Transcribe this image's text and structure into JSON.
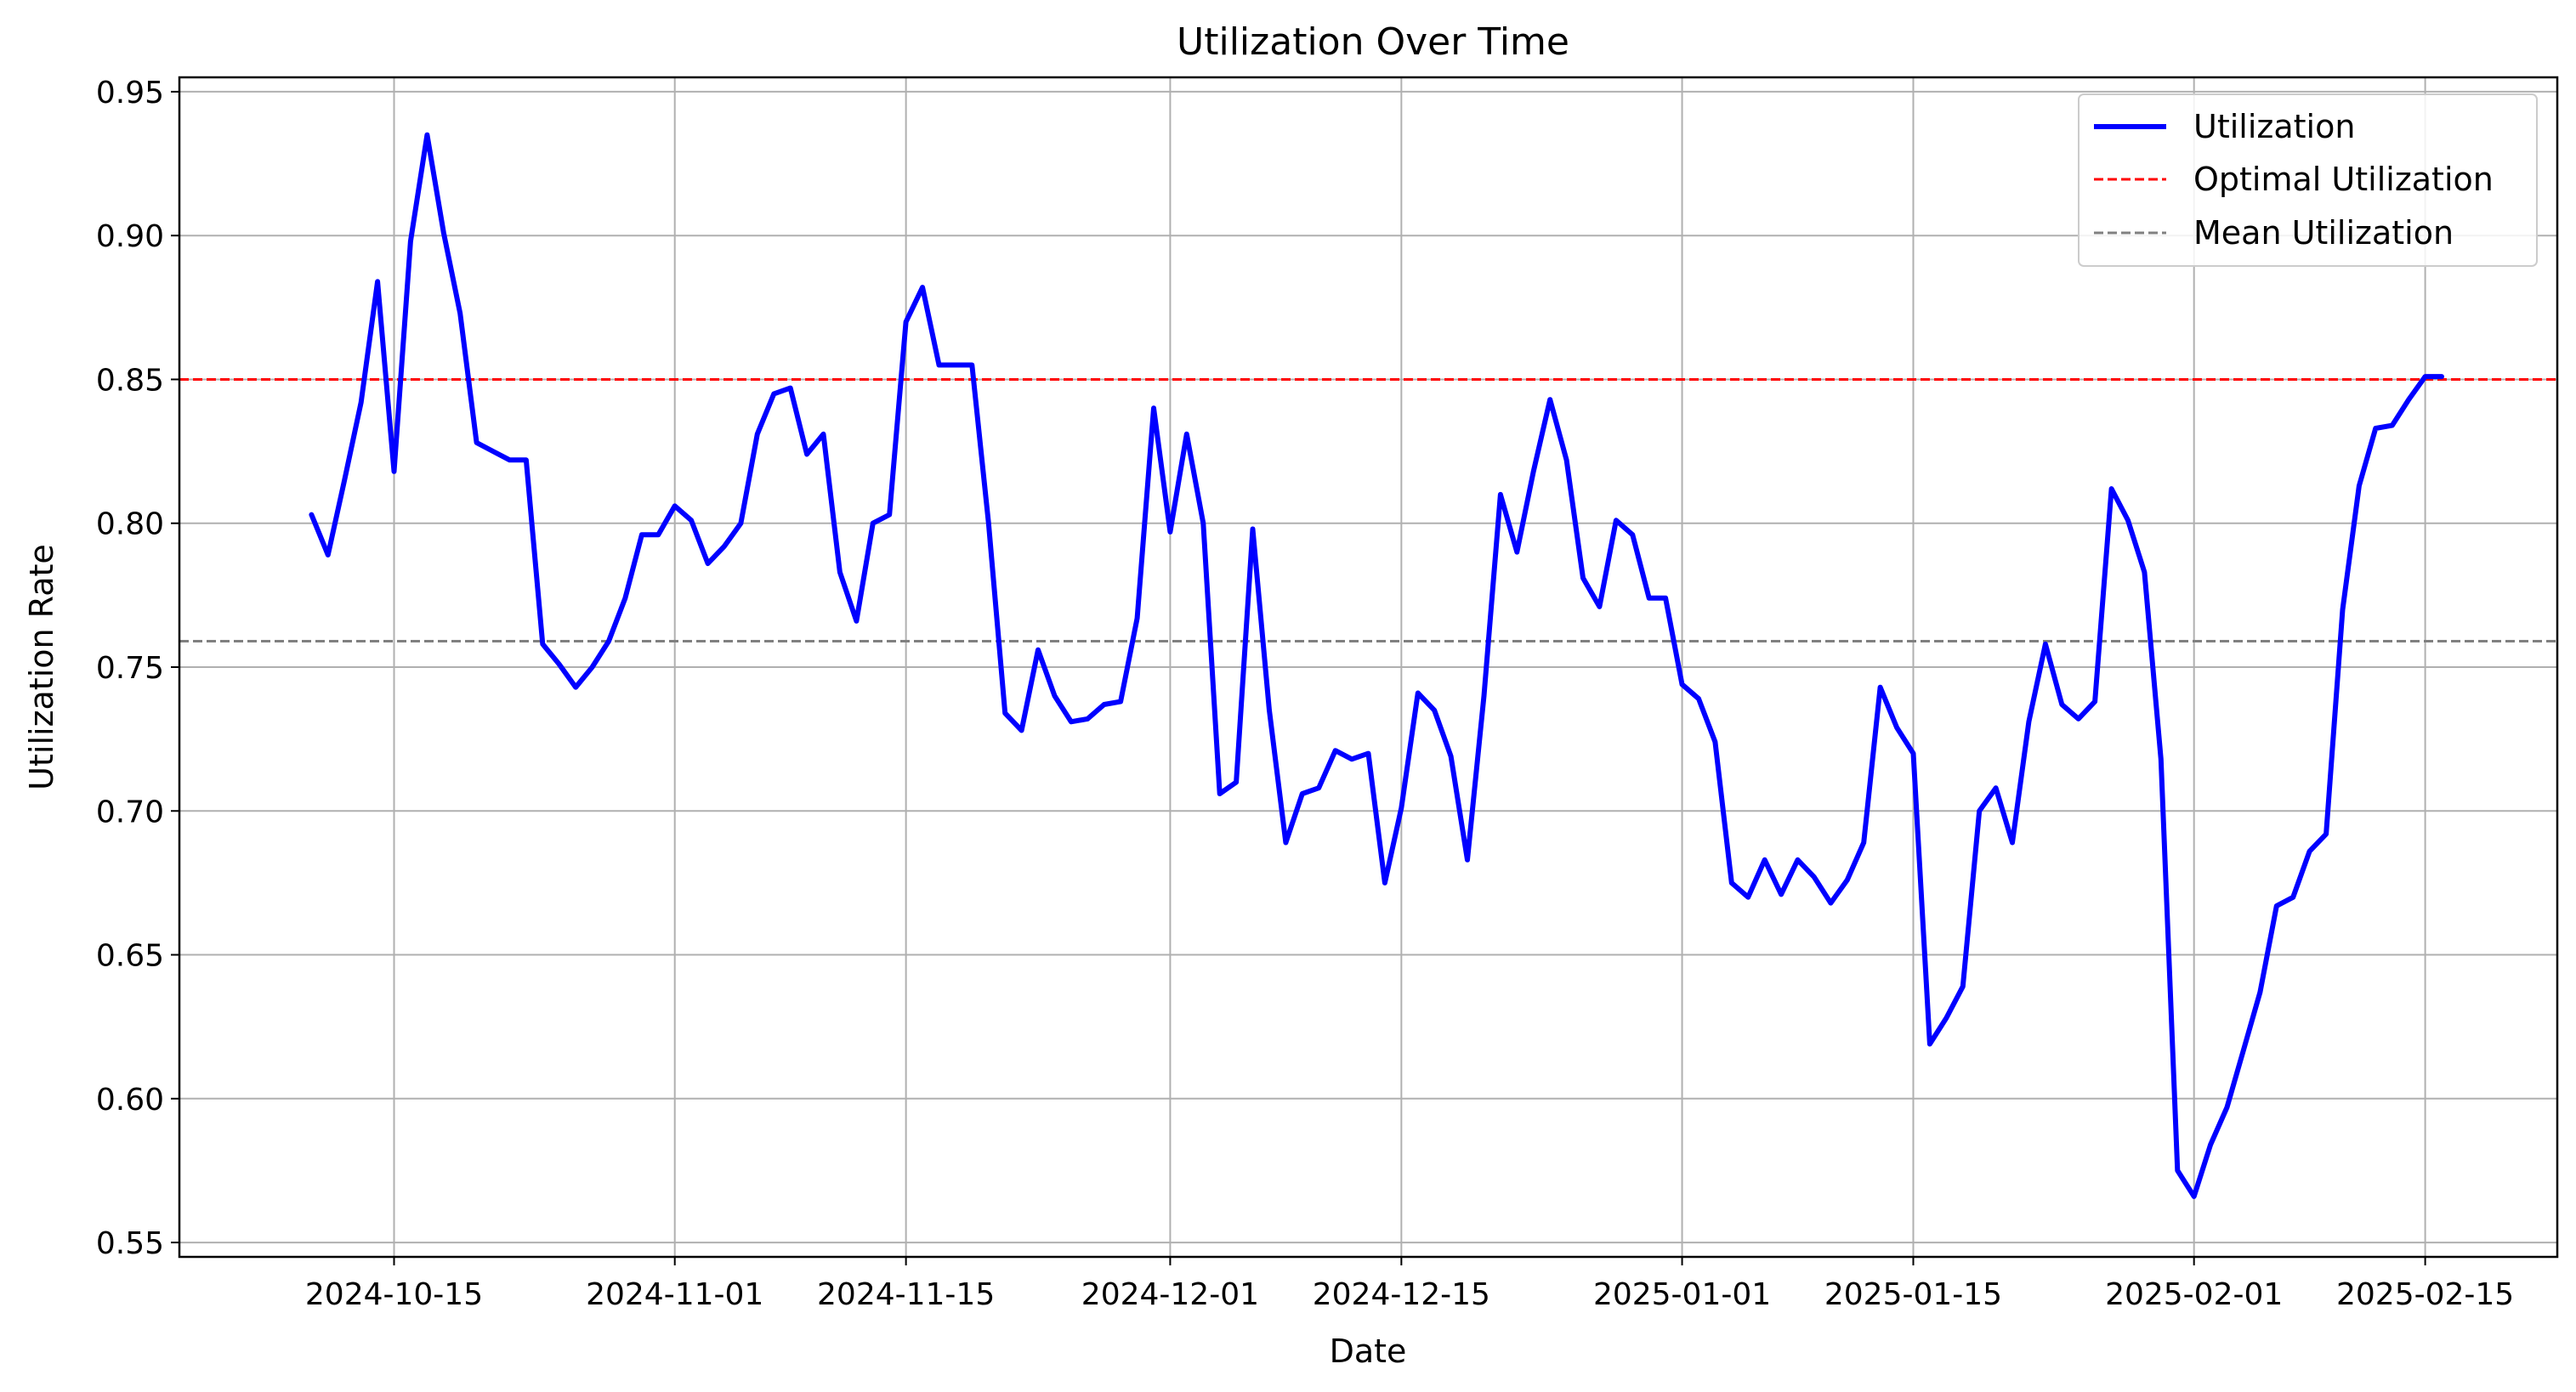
{
  "chart_data": {
    "type": "line",
    "title": "Utilization Over Time",
    "xlabel": "Date",
    "ylabel": "Utilization Rate",
    "grid": true,
    "legend_position": "top-right",
    "xlim": [
      "2024-10-02",
      "2025-02-23"
    ],
    "ylim": [
      0.545,
      0.955
    ],
    "x_ticks": [
      "2024-10-15",
      "2024-11-01",
      "2024-11-15",
      "2024-12-01",
      "2024-12-15",
      "2025-01-01",
      "2025-01-15",
      "2025-02-01",
      "2025-02-15"
    ],
    "y_ticks": [
      0.55,
      0.6,
      0.65,
      0.7,
      0.75,
      0.8,
      0.85,
      0.9,
      0.95
    ],
    "y_tick_labels": [
      "0.55",
      "0.60",
      "0.65",
      "0.70",
      "0.75",
      "0.80",
      "0.85",
      "0.90",
      "0.95"
    ],
    "series": [
      {
        "name": "Utilization",
        "color": "#0000ff",
        "style": "solid",
        "points": [
          [
            "2024-10-10",
            0.803
          ],
          [
            "2024-10-11",
            0.789
          ],
          [
            "2024-10-12",
            0.815
          ],
          [
            "2024-10-13",
            0.842
          ],
          [
            "2024-10-14",
            0.884
          ],
          [
            "2024-10-15",
            0.818
          ],
          [
            "2024-10-16",
            0.898
          ],
          [
            "2024-10-17",
            0.935
          ],
          [
            "2024-10-18",
            0.901
          ],
          [
            "2024-10-19",
            0.873
          ],
          [
            "2024-10-20",
            0.828
          ],
          [
            "2024-10-21",
            0.825
          ],
          [
            "2024-10-22",
            0.822
          ],
          [
            "2024-10-23",
            0.822
          ],
          [
            "2024-10-24",
            0.758
          ],
          [
            "2024-10-25",
            0.751
          ],
          [
            "2024-10-26",
            0.743
          ],
          [
            "2024-10-27",
            0.75
          ],
          [
            "2024-10-28",
            0.759
          ],
          [
            "2024-10-29",
            0.774
          ],
          [
            "2024-10-30",
            0.796
          ],
          [
            "2024-10-31",
            0.796
          ],
          [
            "2024-11-01",
            0.806
          ],
          [
            "2024-11-02",
            0.801
          ],
          [
            "2024-11-03",
            0.786
          ],
          [
            "2024-11-04",
            0.792
          ],
          [
            "2024-11-05",
            0.8
          ],
          [
            "2024-11-06",
            0.831
          ],
          [
            "2024-11-07",
            0.845
          ],
          [
            "2024-11-08",
            0.847
          ],
          [
            "2024-11-09",
            0.824
          ],
          [
            "2024-11-10",
            0.831
          ],
          [
            "2024-11-11",
            0.783
          ],
          [
            "2024-11-12",
            0.766
          ],
          [
            "2024-11-13",
            0.8
          ],
          [
            "2024-11-14",
            0.803
          ],
          [
            "2024-11-15",
            0.87
          ],
          [
            "2024-11-16",
            0.882
          ],
          [
            "2024-11-17",
            0.855
          ],
          [
            "2024-11-18",
            0.855
          ],
          [
            "2024-11-19",
            0.855
          ],
          [
            "2024-11-20",
            0.8
          ],
          [
            "2024-11-21",
            0.734
          ],
          [
            "2024-11-22",
            0.728
          ],
          [
            "2024-11-23",
            0.756
          ],
          [
            "2024-11-24",
            0.74
          ],
          [
            "2024-11-25",
            0.731
          ],
          [
            "2024-11-26",
            0.732
          ],
          [
            "2024-11-27",
            0.737
          ],
          [
            "2024-11-28",
            0.738
          ],
          [
            "2024-11-29",
            0.767
          ],
          [
            "2024-11-30",
            0.84
          ],
          [
            "2024-12-01",
            0.797
          ],
          [
            "2024-12-02",
            0.831
          ],
          [
            "2024-12-03",
            0.8
          ],
          [
            "2024-12-04",
            0.706
          ],
          [
            "2024-12-05",
            0.71
          ],
          [
            "2024-12-06",
            0.798
          ],
          [
            "2024-12-07",
            0.735
          ],
          [
            "2024-12-08",
            0.689
          ],
          [
            "2024-12-09",
            0.706
          ],
          [
            "2024-12-10",
            0.708
          ],
          [
            "2024-12-11",
            0.721
          ],
          [
            "2024-12-12",
            0.718
          ],
          [
            "2024-12-13",
            0.72
          ],
          [
            "2024-12-14",
            0.675
          ],
          [
            "2024-12-15",
            0.701
          ],
          [
            "2024-12-16",
            0.741
          ],
          [
            "2024-12-17",
            0.735
          ],
          [
            "2024-12-18",
            0.719
          ],
          [
            "2024-12-19",
            0.683
          ],
          [
            "2024-12-20",
            0.74
          ],
          [
            "2024-12-21",
            0.81
          ],
          [
            "2024-12-22",
            0.79
          ],
          [
            "2024-12-23",
            0.818
          ],
          [
            "2024-12-24",
            0.843
          ],
          [
            "2024-12-25",
            0.822
          ],
          [
            "2024-12-26",
            0.781
          ],
          [
            "2024-12-27",
            0.771
          ],
          [
            "2024-12-28",
            0.801
          ],
          [
            "2024-12-29",
            0.796
          ],
          [
            "2024-12-30",
            0.774
          ],
          [
            "2024-12-31",
            0.774
          ],
          [
            "2025-01-01",
            0.744
          ],
          [
            "2025-01-02",
            0.739
          ],
          [
            "2025-01-03",
            0.724
          ],
          [
            "2025-01-04",
            0.675
          ],
          [
            "2025-01-05",
            0.67
          ],
          [
            "2025-01-06",
            0.683
          ],
          [
            "2025-01-07",
            0.671
          ],
          [
            "2025-01-08",
            0.683
          ],
          [
            "2025-01-09",
            0.677
          ],
          [
            "2025-01-10",
            0.668
          ],
          [
            "2025-01-11",
            0.676
          ],
          [
            "2025-01-12",
            0.689
          ],
          [
            "2025-01-13",
            0.743
          ],
          [
            "2025-01-14",
            0.729
          ],
          [
            "2025-01-15",
            0.72
          ],
          [
            "2025-01-16",
            0.619
          ],
          [
            "2025-01-17",
            0.628
          ],
          [
            "2025-01-18",
            0.639
          ],
          [
            "2025-01-19",
            0.7
          ],
          [
            "2025-01-20",
            0.708
          ],
          [
            "2025-01-21",
            0.689
          ],
          [
            "2025-01-22",
            0.731
          ],
          [
            "2025-01-23",
            0.758
          ],
          [
            "2025-01-24",
            0.737
          ],
          [
            "2025-01-25",
            0.732
          ],
          [
            "2025-01-26",
            0.738
          ],
          [
            "2025-01-27",
            0.812
          ],
          [
            "2025-01-28",
            0.801
          ],
          [
            "2025-01-29",
            0.783
          ],
          [
            "2025-01-30",
            0.718
          ],
          [
            "2025-01-31",
            0.575
          ],
          [
            "2025-02-01",
            0.566
          ],
          [
            "2025-02-02",
            0.584
          ],
          [
            "2025-02-03",
            0.597
          ],
          [
            "2025-02-04",
            0.617
          ],
          [
            "2025-02-05",
            0.637
          ],
          [
            "2025-02-06",
            0.667
          ],
          [
            "2025-02-07",
            0.67
          ],
          [
            "2025-02-08",
            0.686
          ],
          [
            "2025-02-09",
            0.692
          ],
          [
            "2025-02-10",
            0.77
          ],
          [
            "2025-02-11",
            0.813
          ],
          [
            "2025-02-12",
            0.833
          ],
          [
            "2025-02-13",
            0.834
          ],
          [
            "2025-02-14",
            0.843
          ],
          [
            "2025-02-15",
            0.851
          ],
          [
            "2025-02-16",
            0.851
          ]
        ]
      },
      {
        "name": "Optimal Utilization",
        "color": "#ff0000",
        "style": "dashed",
        "y": 0.85
      },
      {
        "name": "Mean Utilization",
        "color": "#808080",
        "style": "dashed",
        "y": 0.759
      }
    ]
  }
}
